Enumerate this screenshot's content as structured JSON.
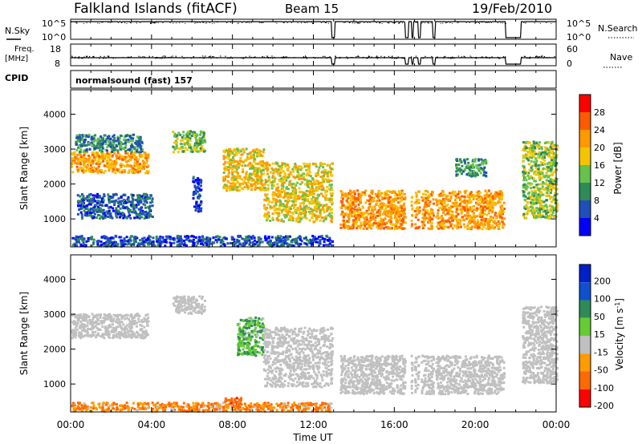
{
  "header": {
    "station": "Falkland Islands (fitACF)",
    "beam": "Beam 15",
    "date": "19/Feb/2010"
  },
  "side_labels": {
    "nsky": "N.Sky",
    "freq": "Freq.",
    "freq_unit": "[MHz]",
    "cpid": "CPID",
    "nsearch": "N.Search",
    "nave": "Nave"
  },
  "cpid_text": "normalsound (fast) 157",
  "colors": {
    "power": [
      "#0000ff",
      "#1f4fb8",
      "#2e8b57",
      "#66c24a",
      "#f5c400",
      "#ff9900",
      "#ff5a00",
      "#ff0000"
    ],
    "velocity": [
      "#0020c8",
      "#1050d0",
      "#2e8b57",
      "#66cc33",
      "#c0c0c0",
      "#ff9a00",
      "#ff6a00",
      "#ff0000"
    ],
    "ground_scatter": "#c0c0c0"
  },
  "chart_data": [
    {
      "type": "line",
      "panel": "nsky-nsearch",
      "y_left_ticks": [
        "10^5",
        "10^0"
      ],
      "y_right_ticks": [
        "10^5",
        "10^0"
      ],
      "x_range_hours": [
        0,
        24
      ],
      "data_gaps_hours": [
        [
          12.9,
          13.05
        ],
        [
          16.55,
          16.7
        ],
        [
          16.85,
          16.95
        ],
        [
          17.2,
          17.3
        ],
        [
          17.9,
          18.0
        ],
        [
          21.5,
          22.25
        ]
      ]
    },
    {
      "type": "line",
      "panel": "freq-nave",
      "y_left_ticks": [
        "18",
        "8"
      ],
      "y_right_ticks": [
        "60",
        "0"
      ],
      "y_left_range": [
        8,
        18
      ],
      "y_right_range": [
        0,
        60
      ],
      "freq_level_mhz": 11.5,
      "nave_level": 24
    },
    {
      "type": "heatmap",
      "panel": "power",
      "ylabel": "Slant Range [km]",
      "y_ticks": [
        1000,
        2000,
        3000,
        4000
      ],
      "ylim": [
        200,
        4700
      ],
      "xlim_hours": [
        0,
        24
      ],
      "colorbar_label": "Power [dB]",
      "colorbar_ticks": [
        28,
        24,
        20,
        16,
        12,
        8,
        4
      ],
      "colorbar_range": [
        0,
        32
      ],
      "regions": [
        {
          "t": [
            0,
            3.8
          ],
          "r": [
            2300,
            2900
          ],
          "level": 21
        },
        {
          "t": [
            0.2,
            3.5
          ],
          "r": [
            2900,
            3400
          ],
          "level": 9
        },
        {
          "t": [
            0.3,
            4.0
          ],
          "r": [
            1000,
            1700
          ],
          "level": 7
        },
        {
          "t": [
            5.0,
            6.6
          ],
          "r": [
            2900,
            3500
          ],
          "level": 14
        },
        {
          "t": [
            6.0,
            6.4
          ],
          "r": [
            1200,
            2200
          ],
          "level": 5
        },
        {
          "t": [
            7.5,
            9.5
          ],
          "r": [
            1800,
            3000
          ],
          "level": 19
        },
        {
          "t": [
            9.5,
            12.9
          ],
          "r": [
            900,
            2600
          ],
          "level": 18
        },
        {
          "t": [
            13.3,
            16.5
          ],
          "r": [
            700,
            1800
          ],
          "level": 22
        },
        {
          "t": [
            16.8,
            21.4
          ],
          "r": [
            700,
            1800
          ],
          "level": 22
        },
        {
          "t": [
            19.0,
            20.5
          ],
          "r": [
            2200,
            2700
          ],
          "level": 11
        },
        {
          "t": [
            22.3,
            24
          ],
          "r": [
            1000,
            3200
          ],
          "level": 15
        },
        {
          "t": [
            0,
            12.9
          ],
          "r": [
            200,
            500
          ],
          "level": 6
        }
      ]
    },
    {
      "type": "heatmap",
      "panel": "velocity",
      "xlabel": "Time UT",
      "ylabel": "Slant Range [km]",
      "y_ticks": [
        1000,
        2000,
        3000,
        4000
      ],
      "ylim": [
        200,
        4700
      ],
      "xlim_hours": [
        0,
        24
      ],
      "x_tick_labels": [
        "00:00",
        "04:00",
        "08:00",
        "12:00",
        "16:00",
        "20:00",
        "00:00"
      ],
      "colorbar_label": "Velocity [m s^-1]",
      "colorbar_ticks": [
        "200",
        "100",
        "50",
        "15",
        "-15",
        "-50",
        "-100",
        "-200"
      ],
      "regions": [
        {
          "t": [
            0,
            3.8
          ],
          "r": [
            2300,
            3000
          ],
          "level": "gs"
        },
        {
          "t": [
            5.0,
            6.6
          ],
          "r": [
            3000,
            3500
          ],
          "level": "gs"
        },
        {
          "t": [
            8.2,
            9.5
          ],
          "r": [
            1800,
            2900
          ],
          "level": 30
        },
        {
          "t": [
            9.5,
            12.9
          ],
          "r": [
            900,
            2600
          ],
          "level": "gs"
        },
        {
          "t": [
            13.3,
            16.5
          ],
          "r": [
            700,
            1800
          ],
          "level": "gs"
        },
        {
          "t": [
            16.8,
            21.4
          ],
          "r": [
            700,
            1800
          ],
          "level": "gs"
        },
        {
          "t": [
            7.5,
            8.4
          ],
          "r": [
            300,
            600
          ],
          "level": -60
        },
        {
          "t": [
            0,
            12.9
          ],
          "r": [
            200,
            450
          ],
          "level": -30
        },
        {
          "t": [
            22.3,
            24
          ],
          "r": [
            1000,
            3200
          ],
          "level": "gs"
        }
      ]
    }
  ]
}
